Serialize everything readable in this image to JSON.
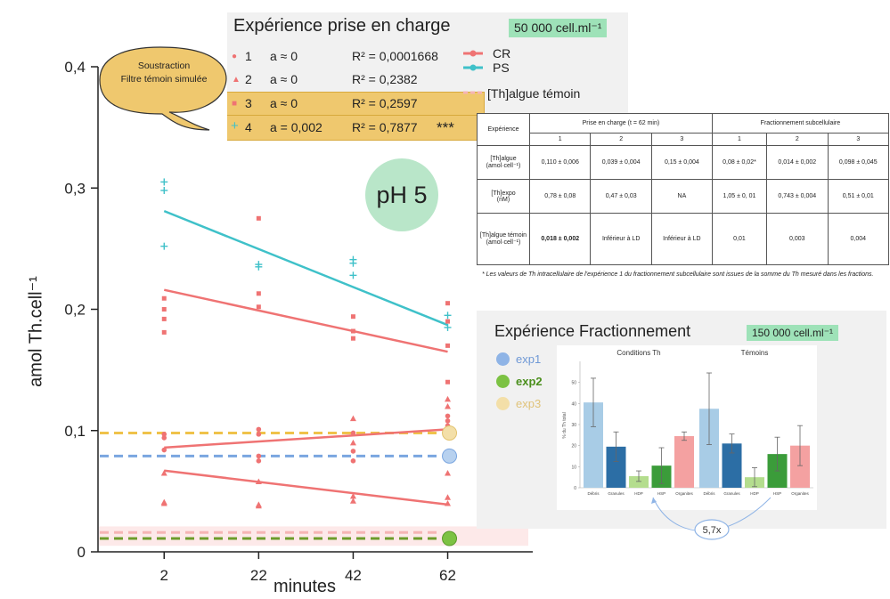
{
  "chart_data": [
    {
      "type": "scatter",
      "title": "",
      "xlabel": "minutes",
      "ylabel": "amol Th.cell⁻¹",
      "ylim": [
        0,
        0.4
      ],
      "xlim": [
        -12,
        80
      ],
      "x_ticks": [
        "2",
        "22",
        "42",
        "62"
      ],
      "y_ticks": [
        "0",
        "0,1",
        "0,2",
        "0,3",
        "0,4"
      ],
      "grid": false,
      "series": [
        {
          "name": "PS",
          "marker": "cross",
          "color": "#3fc1c9",
          "points": [
            [
              2,
              0.305
            ],
            [
              2,
              0.298
            ],
            [
              2,
              0.252
            ],
            [
              22,
              0.237
            ],
            [
              22,
              0.235
            ],
            [
              42,
              0.241
            ],
            [
              42,
              0.238
            ],
            [
              42,
              0.228
            ],
            [
              62,
              0.195
            ],
            [
              62,
              0.185
            ]
          ],
          "fit": [
            [
              2,
              0.281
            ],
            [
              62,
              0.187
            ]
          ]
        },
        {
          "name": "CR 3",
          "marker": "square",
          "color": "#ef7373",
          "points": [
            [
              2,
              0.209
            ],
            [
              2,
              0.2
            ],
            [
              2,
              0.192
            ],
            [
              2,
              0.181
            ],
            [
              22,
              0.275
            ],
            [
              22,
              0.213
            ],
            [
              22,
              0.202
            ],
            [
              42,
              0.194
            ],
            [
              42,
              0.182
            ],
            [
              42,
              0.176
            ],
            [
              62,
              0.205
            ],
            [
              62,
              0.19
            ],
            [
              62,
              0.17
            ],
            [
              62,
              0.14
            ]
          ],
          "fit": [
            [
              2,
              0.216
            ],
            [
              62,
              0.165
            ]
          ]
        },
        {
          "name": "CR 1",
          "marker": "circle",
          "color": "#ef7373",
          "points": [
            [
              2,
              0.097
            ],
            [
              2,
              0.094
            ],
            [
              2,
              0.084
            ],
            [
              22,
              0.101
            ],
            [
              22,
              0.097
            ],
            [
              22,
              0.079
            ],
            [
              22,
              0.075
            ],
            [
              42,
              0.098
            ],
            [
              42,
              0.083
            ],
            [
              42,
              0.075
            ],
            [
              62,
              0.112
            ],
            [
              62,
              0.108
            ],
            [
              62,
              0.104
            ],
            [
              62,
              0.099
            ]
          ],
          "fit": [
            [
              2,
              0.086
            ],
            [
              62,
              0.101
            ]
          ]
        },
        {
          "name": "CR 2",
          "marker": "triangle",
          "color": "#ef7373",
          "points": [
            [
              2,
              0.065
            ],
            [
              2,
              0.041
            ],
            [
              2,
              0.04
            ],
            [
              22,
              0.058
            ],
            [
              22,
              0.039
            ],
            [
              22,
              0.038
            ],
            [
              42,
              0.11
            ],
            [
              42,
              0.09
            ],
            [
              42,
              0.046
            ],
            [
              42,
              0.042
            ],
            [
              62,
              0.126
            ],
            [
              62,
              0.12
            ],
            [
              62,
              0.065
            ],
            [
              62,
              0.045
            ],
            [
              62,
              0.04
            ]
          ],
          "fit": [
            [
              2,
              0.067
            ],
            [
              62,
              0.039
            ]
          ]
        }
      ],
      "hlines": [
        {
          "y": 0.098,
          "color": "#efc24a",
          "label": "exp3"
        },
        {
          "y": 0.079,
          "color": "#7aa6e0",
          "label": "exp1"
        },
        {
          "y": 0.016,
          "color": "#f5b5b5",
          "label": "témoin"
        },
        {
          "y": 0.011,
          "color": "#6d9c2a",
          "label": "exp2"
        }
      ],
      "end_markers": [
        {
          "y": 0.098,
          "color": "#f3dfa8",
          "stroke": "#e2c36f"
        },
        {
          "y": 0.079,
          "color": "#b7d1ef",
          "stroke": "#7aa6e0"
        },
        {
          "y": 0.011,
          "color": "#7cc243",
          "stroke": "#5b9a2c"
        }
      ]
    },
    {
      "type": "bar",
      "ylabel": "% du Th total",
      "ylim": [
        0,
        60
      ],
      "y_ticks": [
        "0",
        "10",
        "20",
        "30",
        "40",
        "50"
      ],
      "groups": [
        {
          "name": "Conditions Th",
          "categories": [
            "Débris",
            "Granules",
            "HDP",
            "HSP",
            "Organites"
          ],
          "values": [
            40.5,
            19.5,
            5.5,
            10.5,
            24.5
          ],
          "errors": [
            11.5,
            7.0,
            2.5,
            8.5,
            2.0
          ]
        },
        {
          "name": "Témoins",
          "categories": [
            "Débris",
            "Granules",
            "HDP",
            "HSP",
            "Organites"
          ],
          "values": [
            37.5,
            21.0,
            5.0,
            16.0,
            20.0
          ],
          "errors": [
            17.0,
            4.5,
            4.5,
            8.0,
            9.5
          ]
        }
      ],
      "colors": [
        "#a8cce6",
        "#2c6ea5",
        "#b4dd8e",
        "#3b9c3a",
        "#f4a1a1"
      ],
      "annotation": "5,7x"
    }
  ],
  "callout": {
    "line1": "Soustraction",
    "line2": "Filtre témoin simulée"
  },
  "ph_label": "pH 5",
  "legend": {
    "title": "Expérience prise en charge",
    "conc": "50 000 cell.ml⁻¹",
    "rows": [
      {
        "marker": "●",
        "num": "1",
        "a": "a ≈ 0",
        "r2": "R² = 0,0001668",
        "stars": ""
      },
      {
        "marker": "▲",
        "num": "2",
        "a": "a ≈ 0",
        "r2": "R² = 0,2382",
        "stars": ""
      },
      {
        "marker": "■",
        "num": "3",
        "a": "a ≈ 0",
        "r2": "R² =  0,2597",
        "stars": ""
      },
      {
        "marker": "+",
        "num": "4",
        "a": "a = 0,002",
        "r2": "R² = 0,7877",
        "stars": "***"
      }
    ],
    "cr": "CR",
    "ps": "PS",
    "temoin": "[Th]algue témoin"
  },
  "table": {
    "col_exp": "Expérience",
    "group1": "Prise en charge (t = 62 min)",
    "group2": "Fractionnement subcellulaire",
    "nums": [
      "1",
      "2",
      "3",
      "1",
      "2",
      "3"
    ],
    "rows": [
      {
        "label1": "[Th]algue",
        "label2": "(amol·cell⁻¹)",
        "cells": [
          "0,110 ± 0,006",
          "0,039 ± 0,004",
          "0,15 ± 0,004",
          "0,08 ± 0,02*",
          "0,014 ± 0,002",
          "0,098 ± 0,045"
        ]
      },
      {
        "label1": "[Th]expo",
        "label2": "(nM)",
        "cells": [
          "0,78 ± 0,08",
          "0,47 ± 0,03",
          "NA",
          "1,05 ± 0, 01",
          "0,743 ± 0,004",
          "0,51 ± 0,01"
        ]
      },
      {
        "label1": "[Th]algue témoin",
        "label2": "(amol·cell⁻¹)",
        "cells": [
          "0,018 ± 0,002",
          "Inférieur à LD",
          "Inférieur à LD",
          "0,01",
          "0,003",
          "0,004"
        ]
      }
    ],
    "note": "* Les valeurs de Th  intracellulaire de l'expérience 1 du fractionnement subcellulaire sont issues de la somme du Th mesuré dans les fractions."
  },
  "frac": {
    "title": "Expérience Fractionnement",
    "conc": "150 000 cell.ml⁻¹",
    "legend": [
      {
        "label": "exp1",
        "color": "#8fb4e6",
        "text_color": "#6f99d6"
      },
      {
        "label": "exp2",
        "color": "#7cc243",
        "text_color": "#4b8f1d"
      },
      {
        "label": "exp3",
        "color": "#f3dfa8",
        "text_color": "#e0c37a"
      }
    ]
  }
}
